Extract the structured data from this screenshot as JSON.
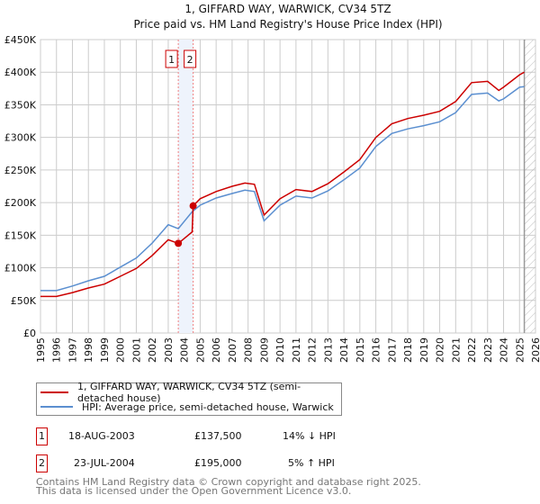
{
  "chart_data": {
    "type": "line",
    "title": "1, GIFFARD WAY, WARWICK, CV34 5TZ",
    "subtitle": "Price paid vs. HM Land Registry's House Price Index (HPI)",
    "xlim": [
      1995,
      2026
    ],
    "ylim": [
      0,
      450000
    ],
    "x_ticks": [
      "1995",
      "1996",
      "1997",
      "1998",
      "1999",
      "2000",
      "2001",
      "2002",
      "2003",
      "2004",
      "2005",
      "2006",
      "2007",
      "2008",
      "2009",
      "2010",
      "2011",
      "2012",
      "2013",
      "2014",
      "2015",
      "2016",
      "2017",
      "2018",
      "2019",
      "2020",
      "2021",
      "2022",
      "2023",
      "2024",
      "2025",
      "2026"
    ],
    "y_ticks": [
      {
        "v": 0,
        "label": "£0"
      },
      {
        "v": 50000,
        "label": "£50K"
      },
      {
        "v": 100000,
        "label": "£100K"
      },
      {
        "v": 150000,
        "label": "£150K"
      },
      {
        "v": 200000,
        "label": "£200K"
      },
      {
        "v": 250000,
        "label": "£250K"
      },
      {
        "v": 300000,
        "label": "£300K"
      },
      {
        "v": 350000,
        "label": "£350K"
      },
      {
        "v": 400000,
        "label": "£400K"
      },
      {
        "v": 450000,
        "label": "£450K"
      }
    ],
    "grid": true,
    "series": [
      {
        "name": "1, GIFFARD WAY, WARWICK, CV34 5TZ (semi-detached house)",
        "color": "#cc0000",
        "x": [
          1995,
          1996,
          1997,
          1998,
          1999,
          2000,
          2001,
          2002,
          2003,
          2003.63,
          2004.5,
          2004.56,
          2005,
          2006,
          2007,
          2007.8,
          2008.4,
          2009,
          2010,
          2011,
          2012,
          2013,
          2014,
          2015,
          2016,
          2017,
          2018,
          2019,
          2020,
          2021,
          2022,
          2023,
          2023.7,
          2024,
          2025,
          2025.3
        ],
        "y": [
          56000,
          56000,
          62000,
          69000,
          75000,
          87000,
          99000,
          119000,
          143000,
          137500,
          155000,
          195000,
          206000,
          217000,
          225000,
          230000,
          228000,
          181000,
          206000,
          220000,
          217000,
          229000,
          247000,
          266000,
          300000,
          321000,
          329000,
          334000,
          340000,
          355000,
          384000,
          386000,
          372000,
          377000,
          396000,
          400000
        ]
      },
      {
        "name": "HPI: Average price, semi-detached house, Warwick",
        "color": "#5b8fd0",
        "x": [
          1995,
          1996,
          1997,
          1998,
          1999,
          2000,
          2001,
          2002,
          2003,
          2003.63,
          2004.5,
          2005,
          2006,
          2007,
          2007.8,
          2008.4,
          2009,
          2010,
          2011,
          2012,
          2013,
          2014,
          2015,
          2016,
          2017,
          2018,
          2019,
          2020,
          2021,
          2022,
          2023,
          2023.7,
          2024,
          2025,
          2025.3
        ],
        "y": [
          65000,
          65000,
          72000,
          80000,
          87000,
          101000,
          115000,
          138000,
          166000,
          160000,
          186000,
          196000,
          207000,
          214000,
          219000,
          217000,
          172000,
          196000,
          210000,
          207000,
          218000,
          235000,
          253000,
          286000,
          306000,
          313000,
          318000,
          324000,
          338000,
          366000,
          368000,
          356000,
          359000,
          377000,
          378000
        ]
      }
    ],
    "sales": [
      {
        "label": "1",
        "x": 2003.63,
        "y": 137500
      },
      {
        "label": "2",
        "x": 2004.56,
        "y": 195000
      }
    ],
    "forecast_start": 2025.3,
    "legend_position": "bottom"
  },
  "legend": {
    "property": "1, GIFFARD WAY, WARWICK, CV34 5TZ (semi-detached house)",
    "hpi": "HPI: Average price, semi-detached house, Warwick"
  },
  "transactions": [
    {
      "num": "1",
      "date": "18-AUG-2003",
      "price": "£137,500",
      "hpi": "14% ↓ HPI"
    },
    {
      "num": "2",
      "date": "23-JUL-2004",
      "price": "£195,000",
      "hpi": "5% ↑ HPI"
    }
  ],
  "footer": {
    "line1": "Contains HM Land Registry data © Crown copyright and database right 2025.",
    "line2": "This data is licensed under the Open Government Licence v3.0."
  }
}
